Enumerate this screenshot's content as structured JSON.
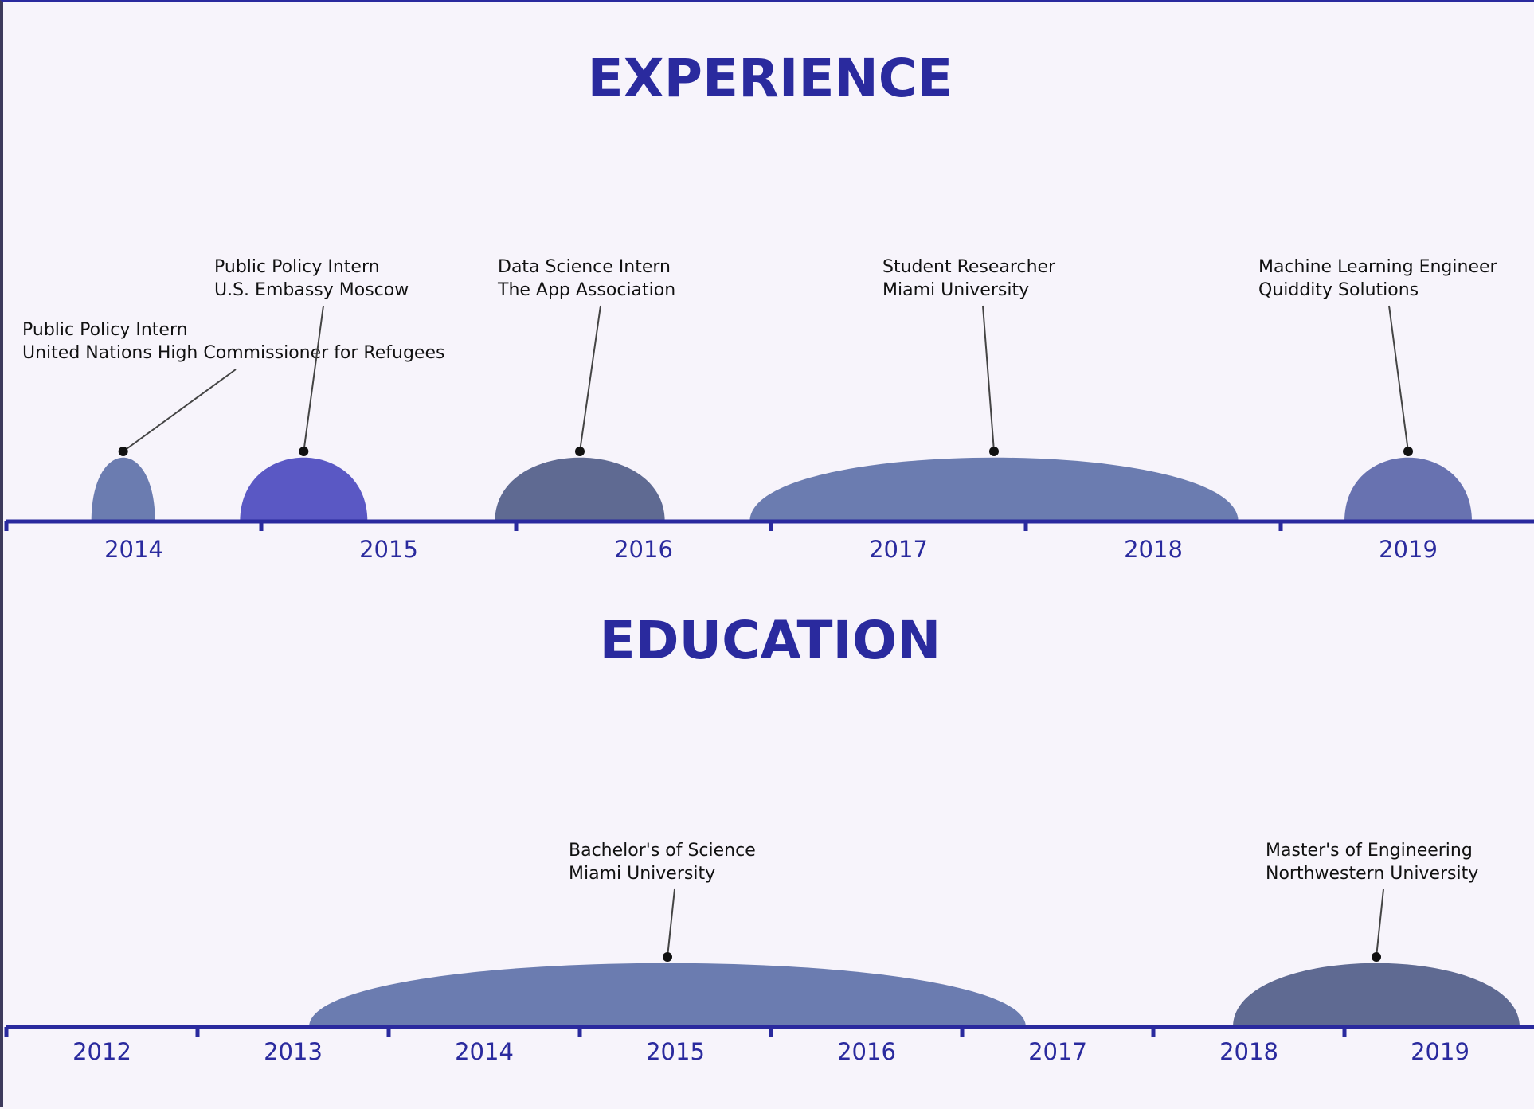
{
  "colors": {
    "accent": "#2a2a9e",
    "connector": "#444444",
    "marker": "#111111",
    "background": "#f7f4fb"
  },
  "chart_data": [
    {
      "type": "area",
      "title": "EXPERIENCE",
      "x_ticks": [
        "2014",
        "2015",
        "2016",
        "2017",
        "2018",
        "2019"
      ],
      "xlim": [
        "2014-01",
        "2019-12"
      ],
      "events": [
        {
          "role": "Public Policy Intern",
          "org": "United Nations High Commissioner for Refugees",
          "start": "2014-05",
          "end": "2014-08",
          "color": "#6b7cb0"
        },
        {
          "role": "Public Policy Intern",
          "org": "U.S. Embassy Moscow",
          "start": "2014-12",
          "end": "2015-06",
          "color": "#5a58c4"
        },
        {
          "role": "Data Science Intern",
          "org": "The App Association",
          "start": "2015-12",
          "end": "2016-08",
          "color": "#5f6a92"
        },
        {
          "role": "Student Researcher",
          "org": "Miami University",
          "start": "2016-12",
          "end": "2018-11",
          "color": "#6b7cb0"
        },
        {
          "role": "Machine Learning Engineer",
          "org": "Quiddity Solutions",
          "start": "2019-04",
          "end": "2019-10",
          "color": "#6872b0"
        }
      ]
    },
    {
      "type": "area",
      "title": "EDUCATION",
      "x_ticks": [
        "2012",
        "2013",
        "2014",
        "2015",
        "2016",
        "2017",
        "2018",
        "2019"
      ],
      "xlim": [
        "2012-01",
        "2019-12"
      ],
      "events": [
        {
          "role": "Bachelor's of Science",
          "org": "Miami University",
          "start": "2013-08",
          "end": "2017-05",
          "color": "#6b7cb0"
        },
        {
          "role": "Master's of Engineering",
          "org": "Northwestern University",
          "start": "2018-06",
          "end": "2019-12",
          "color": "#5f6a92"
        }
      ]
    }
  ]
}
